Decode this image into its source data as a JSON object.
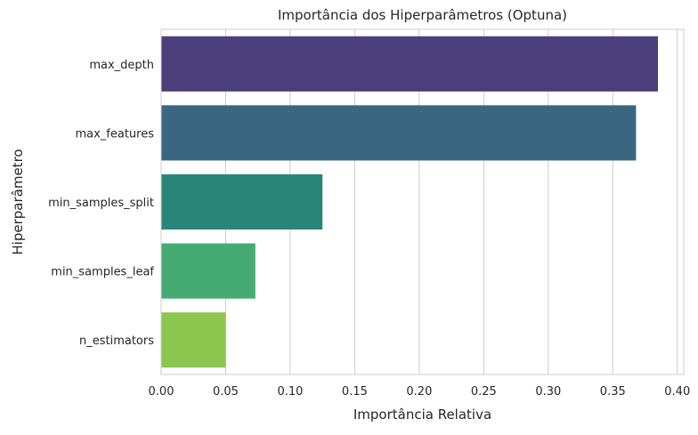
{
  "chart_data": {
    "type": "bar",
    "orientation": "horizontal",
    "title": "Importância dos Hiperparâmetros (Optuna)",
    "xlabel": "Importância Relativa",
    "ylabel": "Hiperparâmetro",
    "categories": [
      "max_depth",
      "max_features",
      "min_samples_split",
      "min_samples_leaf",
      "n_estimators"
    ],
    "values": [
      0.385,
      0.368,
      0.125,
      0.073,
      0.05
    ],
    "colors": [
      "#4a3f7a",
      "#3b6682",
      "#2a8579",
      "#45ab72",
      "#8dc64f"
    ],
    "xlim": [
      0,
      0.405
    ],
    "xticks": [
      0.0,
      0.05,
      0.1,
      0.15,
      0.2,
      0.25,
      0.3,
      0.35,
      0.4
    ],
    "xtick_labels": [
      "0.00",
      "0.05",
      "0.10",
      "0.15",
      "0.20",
      "0.25",
      "0.30",
      "0.35",
      "0.40"
    ],
    "grid": "vertical",
    "grid_color": "#cccccc",
    "background_color": "#ffffff"
  }
}
